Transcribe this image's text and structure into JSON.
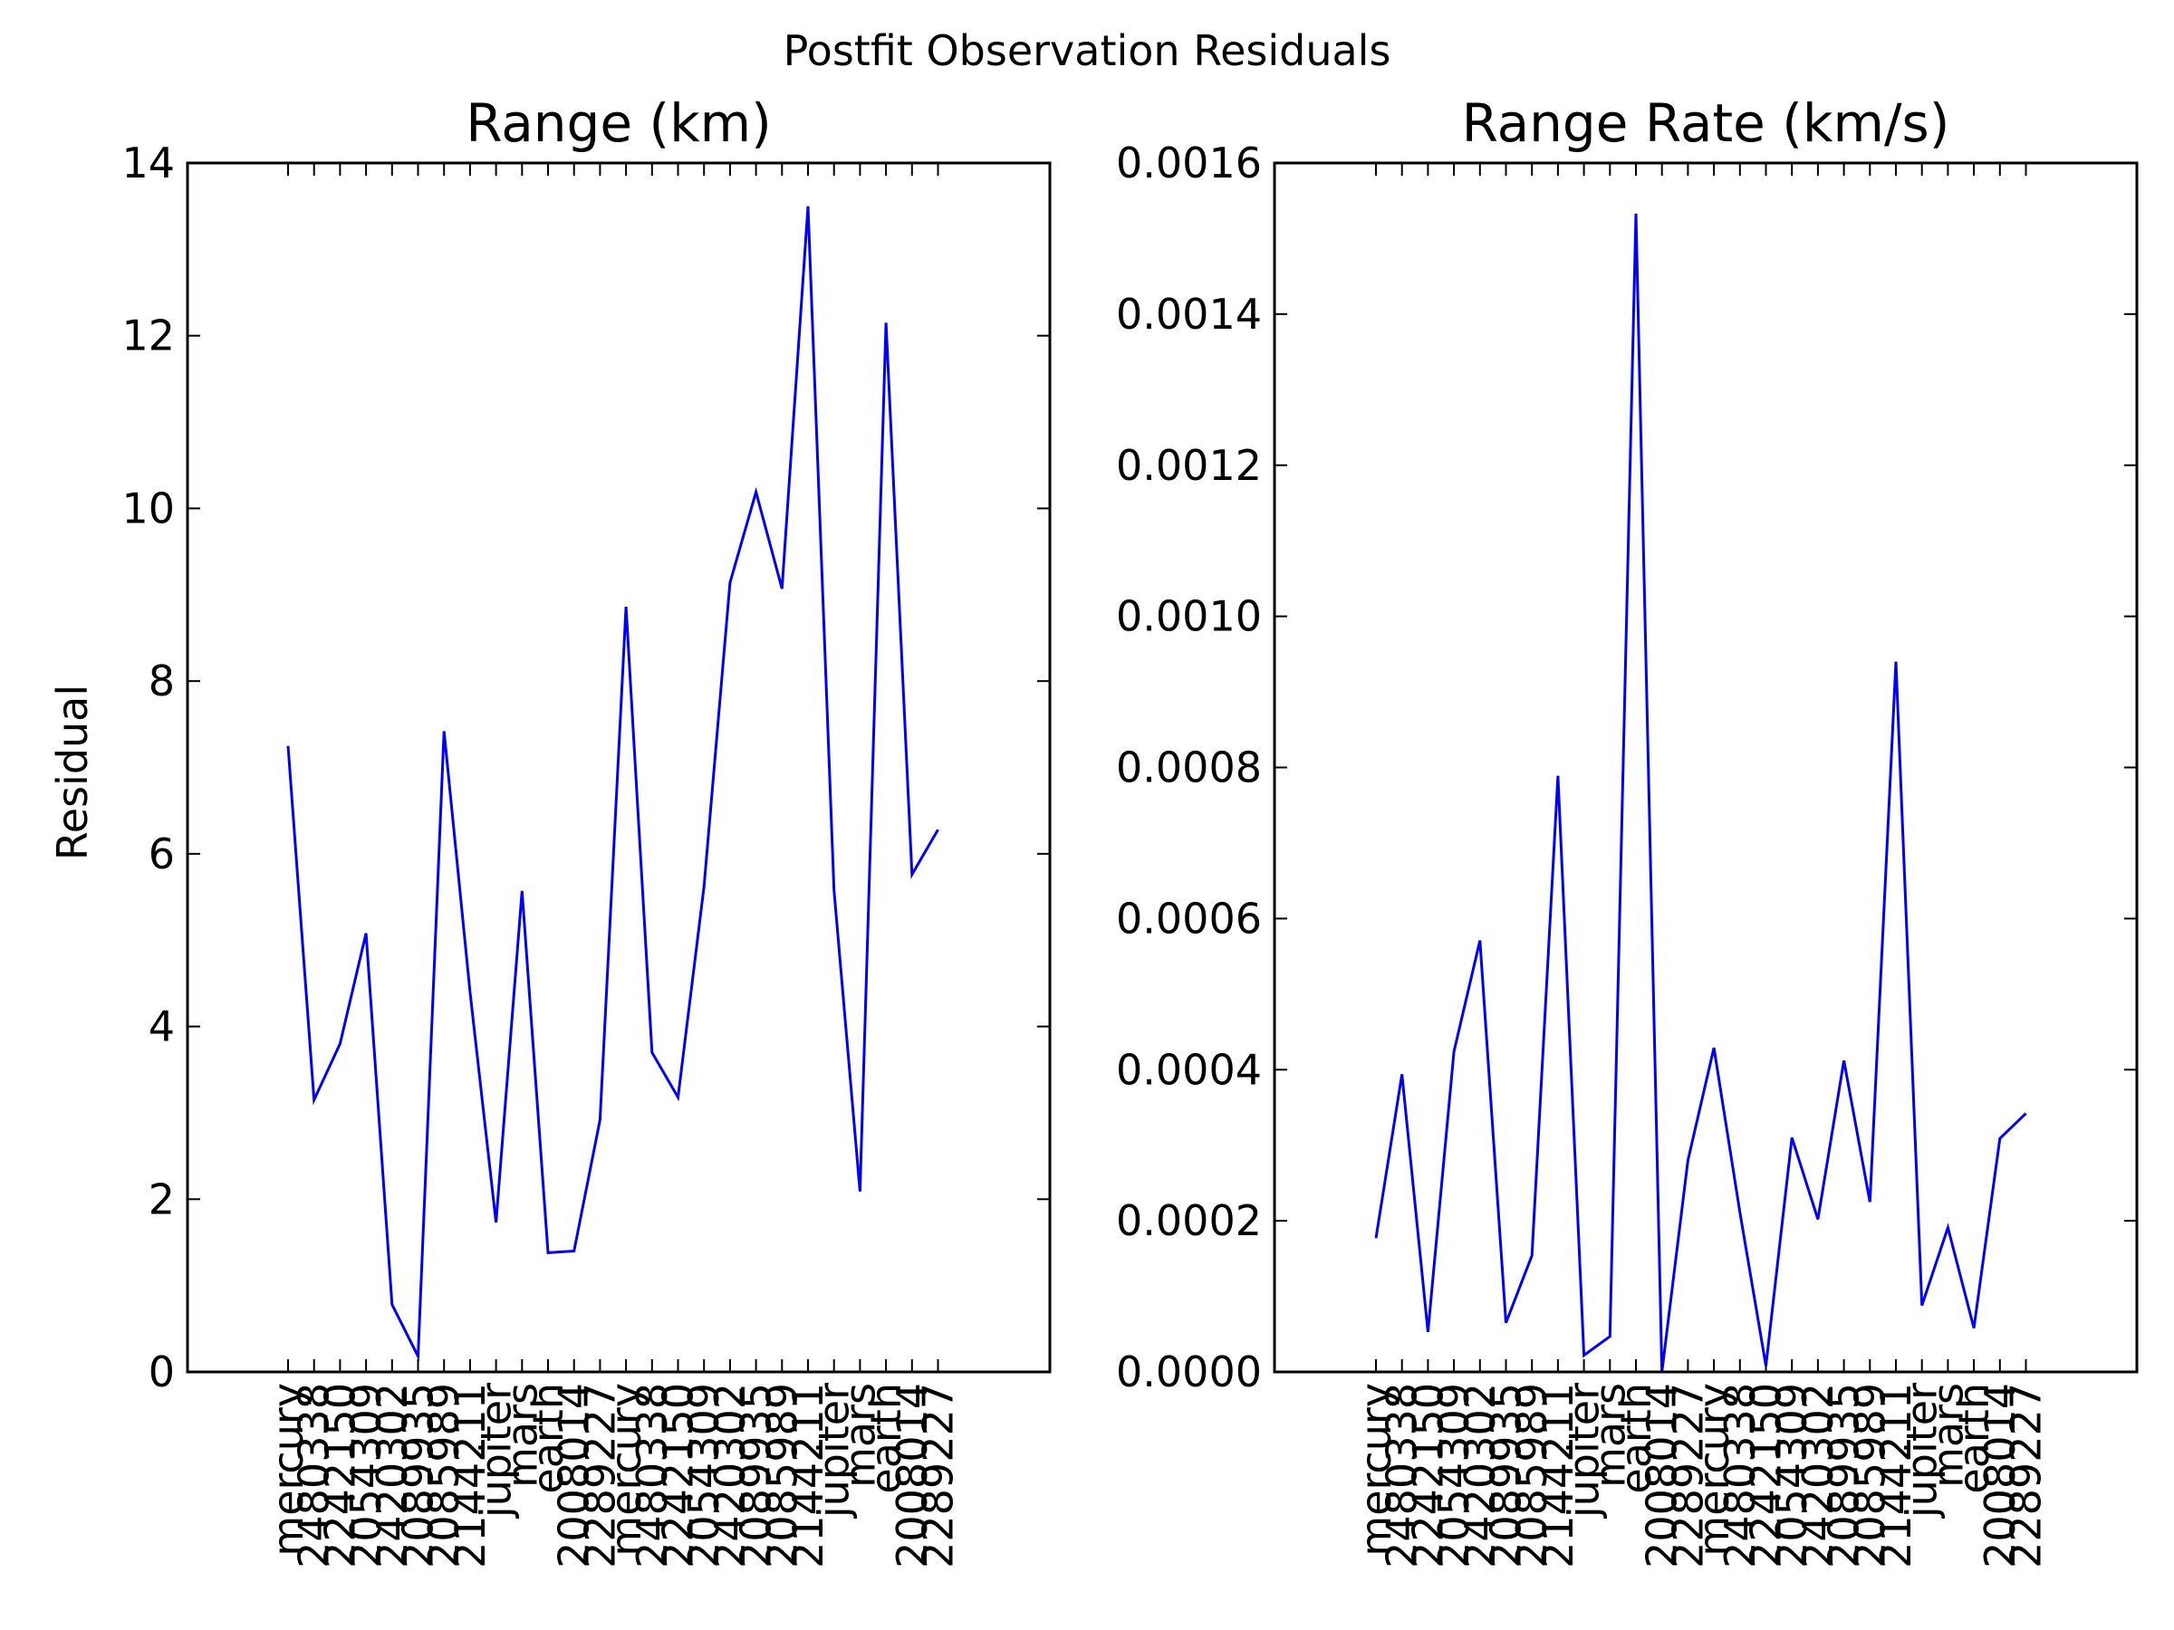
{
  "figure": {
    "suptitle": "Postfit Observation Residuals"
  },
  "chart_data": [
    {
      "type": "line",
      "title": "Range (km)",
      "xlabel": "",
      "ylabel": "Residual",
      "ylim": [
        0,
        14
      ],
      "yticks": [
        "0",
        "2",
        "4",
        "6",
        "8",
        "10",
        "12",
        "14"
      ],
      "grid": false,
      "line_color": "#0000ff",
      "categories": [
        "mercury",
        "2480338",
        "2242150",
        "2054309",
        "2420302",
        "2089935",
        "2085989",
        "2144211",
        "jupiter",
        "mars",
        "earth",
        "2008014",
        "2289227",
        "mercury",
        "2480338",
        "2242150",
        "2054309",
        "2420302",
        "2089935",
        "2085989",
        "2144211",
        "jupiter",
        "mars",
        "earth",
        "2008014",
        "2289227"
      ],
      "values": [
        7.25,
        3.15,
        3.8,
        5.08,
        0.78,
        0.18,
        7.42,
        4.4,
        1.73,
        5.57,
        1.38,
        1.4,
        2.92,
        8.86,
        3.7,
        3.18,
        5.62,
        9.14,
        10.19,
        9.07,
        13.5,
        5.58,
        2.09,
        12.15,
        5.76,
        6.28
      ]
    },
    {
      "type": "line",
      "title": "Range Rate (km/s)",
      "xlabel": "",
      "ylabel": "",
      "ylim": [
        0,
        0.0016
      ],
      "yticks": [
        "0.0000",
        "0.0002",
        "0.0004",
        "0.0006",
        "0.0008",
        "0.0010",
        "0.0012",
        "0.0014",
        "0.0016"
      ],
      "grid": false,
      "line_color": "#0000ff",
      "categories": [
        "mercury",
        "2480338",
        "2242150",
        "2054309",
        "2420302",
        "2089935",
        "2085989",
        "2144211",
        "jupiter",
        "mars",
        "earth",
        "2008014",
        "2289227",
        "mercury",
        "2480338",
        "2242150",
        "2054309",
        "2420302",
        "2089935",
        "2085989",
        "2144211",
        "jupiter",
        "mars",
        "earth",
        "2008014",
        "2289227"
      ],
      "values": [
        0.000177,
        0.000394,
        5.3e-05,
        0.000424,
        0.000571,
        6.5e-05,
        0.000154,
        0.000789,
        2.2e-05,
        4.7e-05,
        0.001533,
        0.0,
        0.00028,
        0.000429,
        0.000211,
        8e-06,
        0.00031,
        0.000202,
        0.000412,
        0.000225,
        0.00094,
        8.8e-05,
        0.000191,
        5.8e-05,
        0.000309,
        0.000342
      ]
    }
  ]
}
